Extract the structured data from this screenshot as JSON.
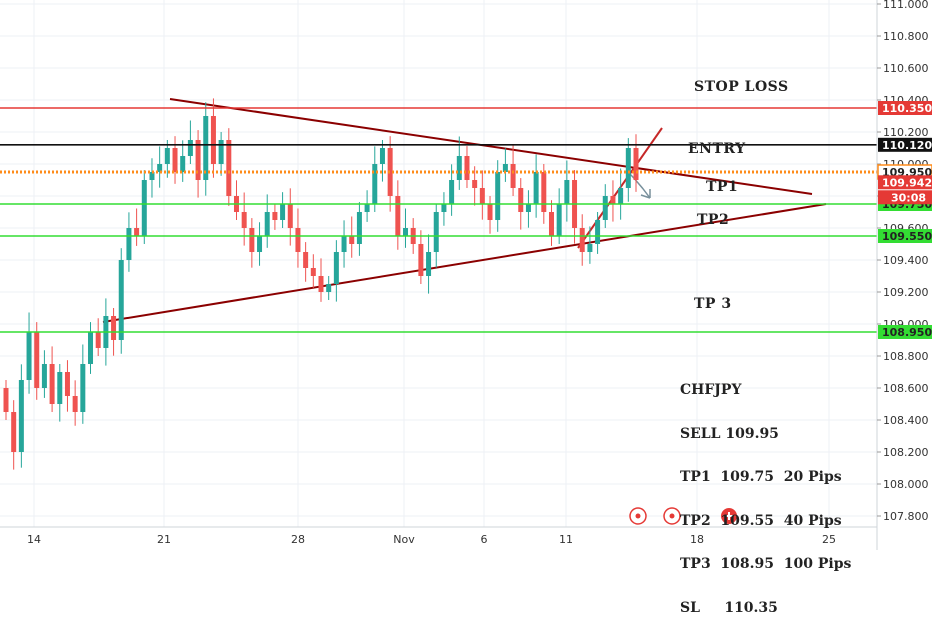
{
  "chart_data": {
    "type": "candlestick",
    "symbol": "CHFJPY",
    "ylim": [
      107.72,
      111.04
    ],
    "y_ticks": [
      "111.000",
      "110.800",
      "110.600",
      "110.400",
      "110.200",
      "110.000",
      "109.800",
      "109.600",
      "109.400",
      "109.200",
      "109.000",
      "108.800",
      "108.600",
      "108.400",
      "108.200",
      "108.000",
      "107.800"
    ],
    "x_ticks": [
      "14",
      "21",
      "28",
      "Nov",
      "6",
      "11",
      "18",
      "25"
    ],
    "levels": [
      {
        "name": "stop-loss",
        "price": 110.35,
        "label": "110.350",
        "color": "#e53935"
      },
      {
        "name": "entry",
        "price": 110.12,
        "label": "110.120",
        "color": "#111111"
      },
      {
        "name": "sell",
        "price": 109.95,
        "label": "109.950",
        "color": "#ff8c1a"
      },
      {
        "name": "tp1",
        "price": 109.75,
        "label": "109.750",
        "color": "#33dd33"
      },
      {
        "name": "tp2",
        "price": 109.55,
        "label": "109.550",
        "color": "#33dd33"
      },
      {
        "name": "tp3",
        "price": 108.95,
        "label": "108.950",
        "color": "#33dd33"
      }
    ],
    "current_price": {
      "label": "109.942",
      "countdown": "30:08",
      "color": "#e53935"
    },
    "annotations": [
      "STOP LOSS",
      "ENTRY",
      "TP1",
      "TP2",
      "TP 3"
    ],
    "closes": [
      108.45,
      108.2,
      108.65,
      108.95,
      108.6,
      108.75,
      108.5,
      108.7,
      108.55,
      108.45,
      108.75,
      108.95,
      108.85,
      109.05,
      108.9,
      109.4,
      109.6,
      109.55,
      109.9,
      109.95,
      110.0,
      110.1,
      109.95,
      110.05,
      110.15,
      109.9,
      110.3,
      110.0,
      110.15,
      109.8,
      109.7,
      109.6,
      109.45,
      109.55,
      109.7,
      109.65,
      109.75,
      109.6,
      109.45,
      109.35,
      109.3,
      109.2,
      109.25,
      109.45,
      109.55,
      109.5,
      109.7,
      109.75,
      110.0,
      110.1,
      109.8,
      109.55,
      109.6,
      109.5,
      109.3,
      109.45,
      109.7,
      109.75,
      109.9,
      110.05,
      109.9,
      109.85,
      109.75,
      109.65,
      109.95,
      110.0,
      109.85,
      109.7,
      109.75,
      109.95,
      109.7,
      109.55,
      109.75,
      109.9,
      109.6,
      109.45,
      109.5,
      109.65,
      109.8,
      109.75,
      109.85,
      110.1,
      109.9
    ]
  },
  "info_box": [
    "CHFJPY",
    "SELL 109.95",
    "TP1  109.75  20 Pips",
    "TP2  109.55  40 Pips",
    "TP3  108.95  100 Pips",
    "SL     110.35"
  ]
}
